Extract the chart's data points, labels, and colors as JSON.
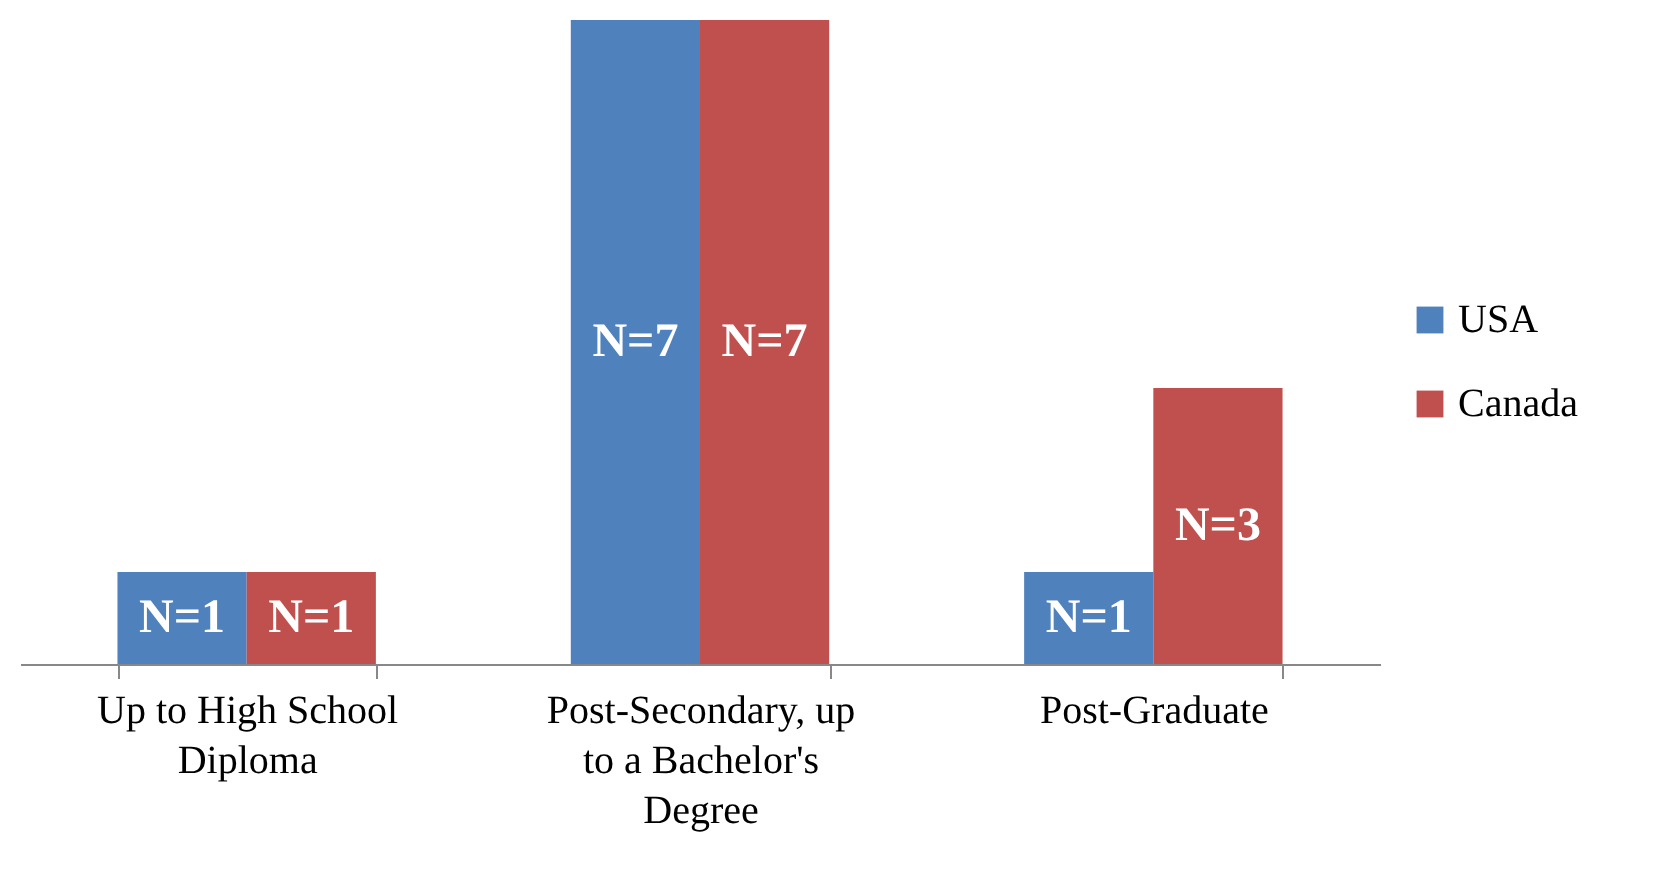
{
  "chart_data": {
    "type": "bar",
    "categories": [
      "Up to High School Diploma",
      "Post-Secondary, up to a Bachelor's Degree",
      "Post-Graduate"
    ],
    "series": [
      {
        "name": "USA",
        "color": "#4f81bd",
        "values": [
          1,
          7,
          1
        ],
        "value_labels": [
          "N=1",
          "N=7",
          "N=1"
        ]
      },
      {
        "name": "Canada",
        "color": "#c0504d",
        "values": [
          1,
          7,
          3
        ],
        "value_labels": [
          "N=1",
          "N=7",
          "N=3"
        ]
      }
    ],
    "legend": "right"
  }
}
